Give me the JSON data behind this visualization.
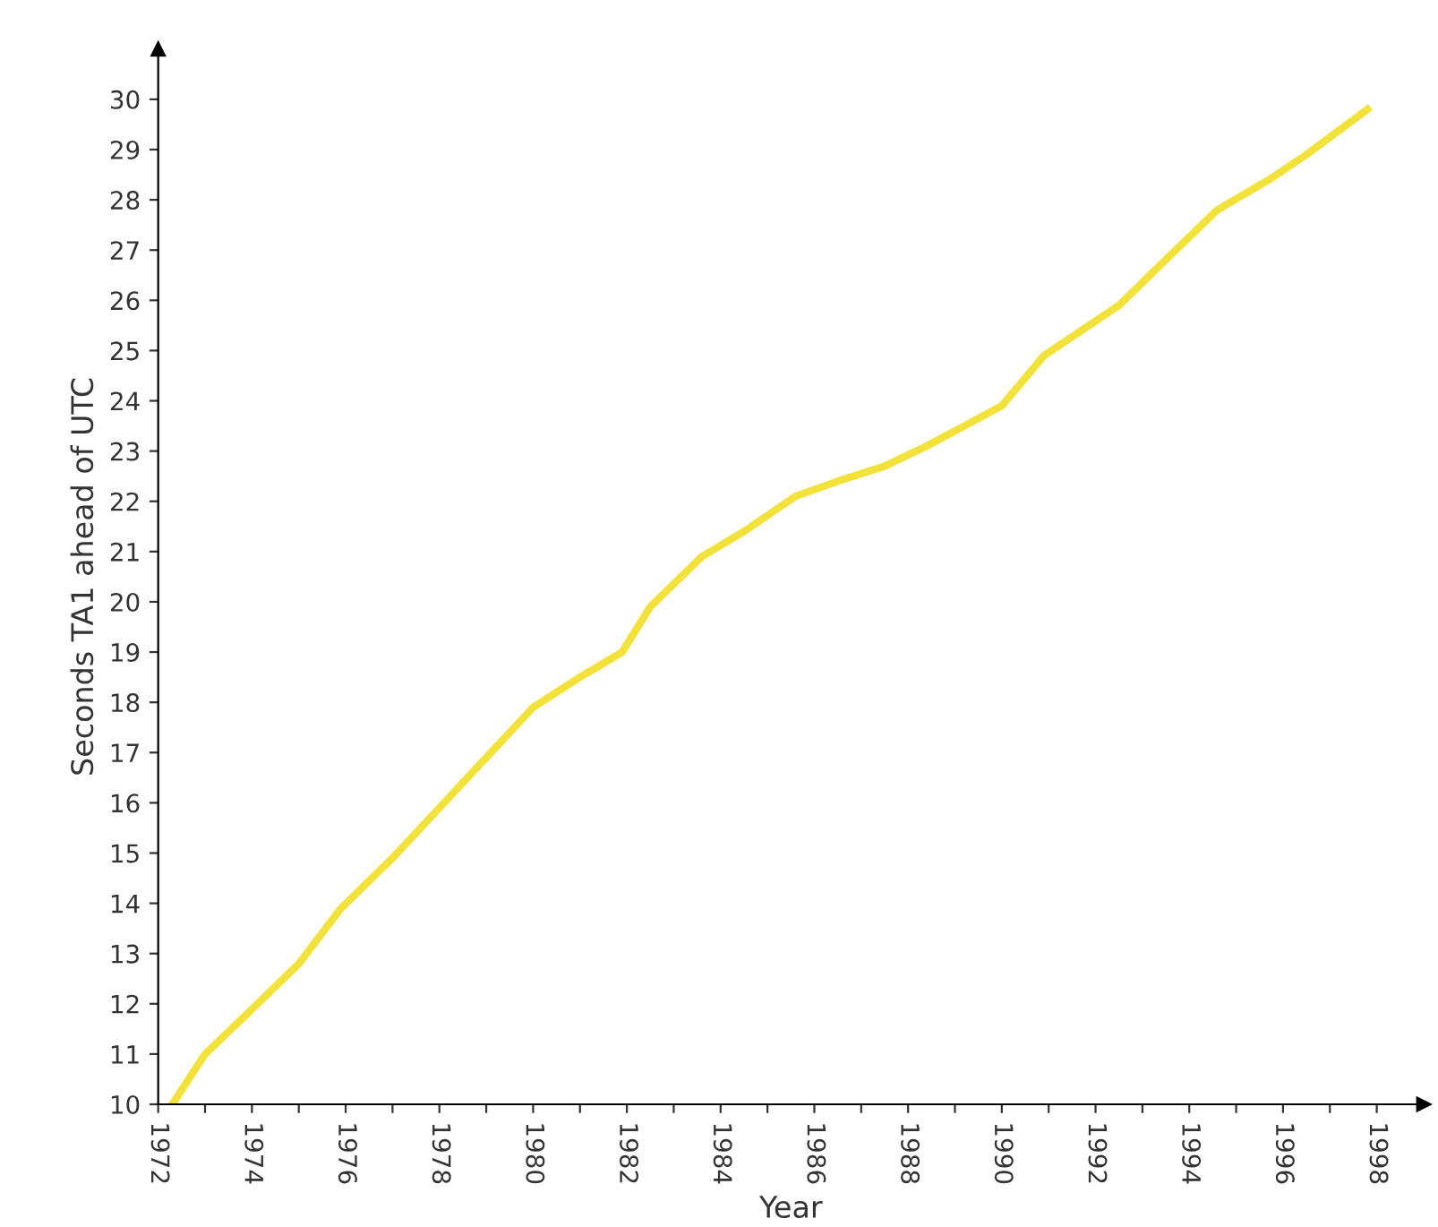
{
  "chart_data": {
    "type": "line",
    "xlabel": "Year",
    "ylabel": "Seconds TA1 ahead of UTC",
    "x": [
      1972.3,
      1973.0,
      1973.9,
      1975.0,
      1975.9,
      1977.0,
      1978.0,
      1979.0,
      1980.0,
      1981.0,
      1981.9,
      1982.5,
      1983.6,
      1984.5,
      1985.6,
      1986.5,
      1987.5,
      1988.4,
      1989.2,
      1990.0,
      1990.9,
      1991.7,
      1992.5,
      1993.6,
      1994.6,
      1995.7,
      1996.5,
      1997.8
    ],
    "series": [
      {
        "color": "#f3e23a",
        "values": [
          10.0,
          11.0,
          11.8,
          12.8,
          13.9,
          14.9,
          15.9,
          16.9,
          17.9,
          18.5,
          19.0,
          19.9,
          20.9,
          21.4,
          22.1,
          22.4,
          22.7,
          23.1,
          23.5,
          23.9,
          24.9,
          25.4,
          25.9,
          26.9,
          27.8,
          28.4,
          28.9,
          29.8
        ]
      }
    ],
    "xlim": [
      1972,
      1999
    ],
    "ylim": [
      10,
      31
    ],
    "xticks": [
      1972,
      {
        "value": 1973,
        "label": null
      },
      1974,
      {
        "value": 1975,
        "label": null
      },
      1976,
      {
        "value": 1977,
        "label": null
      },
      1978,
      {
        "value": 1979,
        "label": null
      },
      1980,
      {
        "value": 1981,
        "label": null
      },
      1982,
      {
        "value": 1983,
        "label": null
      },
      1984,
      {
        "value": 1985,
        "label": null
      },
      1986,
      {
        "value": 1987,
        "label": null
      },
      1988,
      {
        "value": 1989,
        "label": null
      },
      1990,
      {
        "value": 1991,
        "label": null
      },
      1992,
      {
        "value": 1993,
        "label": null
      },
      1994,
      {
        "value": 1995,
        "label": null
      },
      1996,
      {
        "value": 1997,
        "label": null
      },
      1998
    ],
    "yticks": [
      10,
      11,
      12,
      13,
      14,
      15,
      16,
      17,
      18,
      19,
      20,
      21,
      22,
      23,
      24,
      25,
      26,
      27,
      28,
      29,
      30
    ],
    "grid": false,
    "legend": false,
    "marker": "none",
    "line_style": "solid"
  }
}
